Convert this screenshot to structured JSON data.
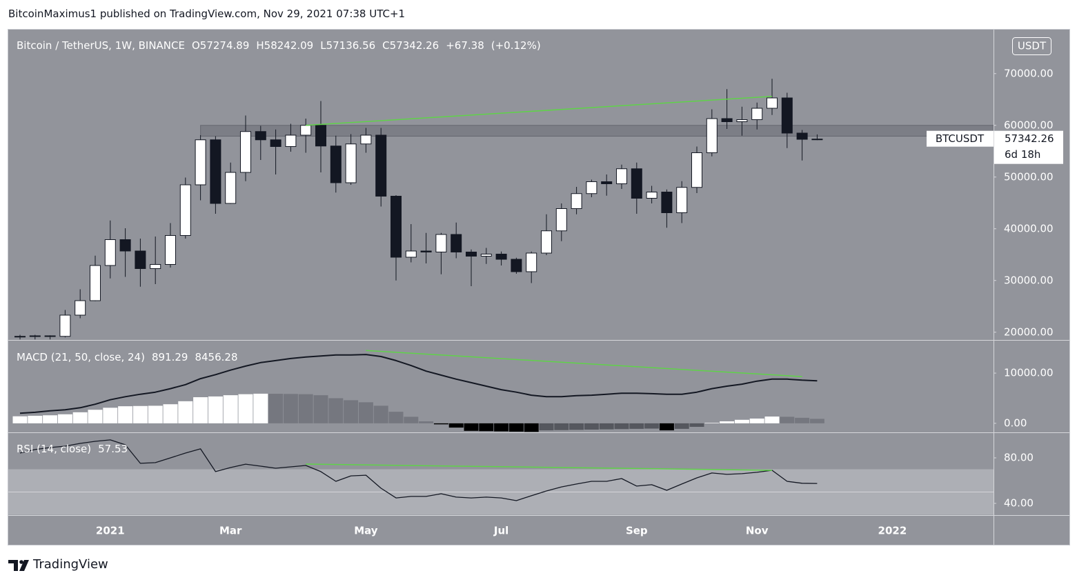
{
  "header": "BitcoinMaximus1 published on TradingView.com, Nov 29, 2021 07:38 UTC+1",
  "footer": "TradingView",
  "chart_data": [
    {
      "type": "candlestick",
      "title": "Bitcoin / TetherUS, 1W, BINANCE",
      "ohlc_letters": [
        "O",
        "H",
        "L",
        "C"
      ],
      "change": "+67.38",
      "change_pct": "(+0.12%)",
      "currency": "USDT",
      "symbol": "BTCUSDT",
      "countdown": "6d 18h",
      "categories": [
        null,
        null,
        null,
        null,
        null,
        null,
        "2021",
        null,
        null,
        null,
        null,
        null,
        null,
        null,
        "Mar",
        null,
        null,
        null,
        null,
        null,
        null,
        null,
        null,
        "May",
        null,
        null,
        null,
        null,
        null,
        null,
        null,
        null,
        "Jul",
        null,
        null,
        null,
        null,
        null,
        null,
        null,
        null,
        "Sep",
        null,
        null,
        null,
        null,
        null,
        null,
        null,
        "Nov",
        null,
        null,
        null,
        null,
        null,
        null,
        null,
        null,
        "2022",
        null,
        null,
        null,
        null,
        null,
        null
      ],
      "ylim": [
        18500,
        78500
      ],
      "yticks": [
        {
          "value": 70000,
          "label": "70000.00"
        },
        {
          "value": 60000,
          "label": "60000.00"
        },
        {
          "value": 50000,
          "label": "50000.00"
        },
        {
          "value": 40000,
          "label": "40000.00"
        },
        {
          "value": 30000,
          "label": "30000.00"
        },
        {
          "value": 20000,
          "label": "20000.00"
        }
      ],
      "grid": false,
      "series": [
        {
          "up_color": "#ffffff",
          "down_color": "#131722",
          "wick_color": "#131722",
          "open": [
            19100,
            19200,
            19300,
            19200,
            23300,
            26100,
            32900,
            37900,
            35700,
            32300,
            33100,
            38700,
            48500,
            57200,
            44900,
            50900,
            58800,
            57200,
            55900,
            58100,
            60000,
            56000,
            48900,
            56400,
            58100,
            46300,
            34500,
            35700,
            35500,
            38900,
            35500,
            34700,
            35100,
            34100,
            31700,
            35300,
            39600,
            43900,
            46800,
            49100,
            48700,
            51600,
            45900,
            47100,
            43100,
            48000,
            54700,
            61300,
            60700,
            61100,
            63300,
            65300,
            58500,
            57274.89,
            null,
            null,
            null,
            null,
            null,
            null,
            null,
            null,
            null,
            null,
            null
          ],
          "high": [
            19500,
            19500,
            19400,
            24300,
            28300,
            34800,
            41600,
            40100,
            38100,
            38500,
            41100,
            49900,
            58100,
            57900,
            52800,
            61900,
            59900,
            59200,
            60300,
            61300,
            64700,
            58000,
            58300,
            59500,
            59500,
            46500,
            40900,
            39200,
            39200,
            41200,
            36000,
            36300,
            35600,
            34400,
            35600,
            42800,
            44900,
            48100,
            49500,
            50500,
            52400,
            52800,
            48300,
            47600,
            49200,
            55900,
            63100,
            67000,
            63600,
            64400,
            69000,
            66300,
            59100,
            58242.09,
            null,
            null,
            null,
            null,
            null,
            null,
            null,
            null,
            null,
            null,
            null
          ],
          "low": [
            18600,
            18600,
            18600,
            19000,
            22700,
            26000,
            30400,
            30700,
            28800,
            29300,
            32500,
            38100,
            45500,
            42900,
            44800,
            49200,
            53300,
            50500,
            54900,
            54700,
            50900,
            47000,
            48500,
            54700,
            44300,
            30000,
            33500,
            33300,
            31200,
            34300,
            28900,
            33200,
            32900,
            31300,
            29500,
            34900,
            37600,
            42800,
            46100,
            46400,
            47700,
            42900,
            44900,
            40200,
            41100,
            46900,
            54000,
            59300,
            58000,
            59200,
            62000,
            55600,
            53200,
            57136.56,
            null,
            null,
            null,
            null,
            null,
            null,
            null,
            null,
            null,
            null,
            null
          ],
          "close": [
            19200,
            19300,
            19200,
            23300,
            26100,
            32900,
            37900,
            35700,
            32300,
            33100,
            38700,
            48500,
            57200,
            44900,
            50900,
            58800,
            57200,
            55900,
            58100,
            60000,
            56000,
            48900,
            56400,
            58100,
            46300,
            34500,
            35700,
            35500,
            38900,
            35500,
            34700,
            35100,
            34100,
            31700,
            35300,
            39600,
            43900,
            46800,
            49100,
            48700,
            51600,
            45900,
            47100,
            43100,
            48000,
            54700,
            61300,
            60700,
            61100,
            63300,
            65300,
            58500,
            57300,
            57342.26,
            null,
            null,
            null,
            null,
            null,
            null,
            null,
            null,
            null,
            null,
            null
          ]
        }
      ],
      "zone": {
        "x_start": 12,
        "y": [
          57900,
          60000
        ],
        "color": "rgba(70,72,80,0.28)"
      },
      "trendline": {
        "x": [
          19,
          50
        ],
        "y": [
          60000,
          65600
        ],
        "color": "#5fd348"
      }
    },
    {
      "type": "macd",
      "title": "MACD (21, 50, close, 24)",
      "ylim": [
        -1800,
        16600
      ],
      "yticks": [
        {
          "value": 10000,
          "label": "10000.00"
        },
        {
          "value": 0,
          "label": "0.00"
        }
      ],
      "histogram": {
        "colors": {
          "up_rising": "#ffffff",
          "up_falling": "#75777f",
          "down_falling": "#000000",
          "down_rising": "#55575e"
        },
        "values": [
          1400,
          1500,
          1600,
          1800,
          2200,
          2700,
          3100,
          3400,
          3450,
          3500,
          3800,
          4400,
          5200,
          5350,
          5600,
          5800,
          5900,
          5880,
          5850,
          5800,
          5600,
          5000,
          4600,
          4200,
          3500,
          2300,
          1300,
          400,
          -200,
          -850,
          -1500,
          -1550,
          -1600,
          -1650,
          -1700,
          -1400,
          -1350,
          -1300,
          -1250,
          -1200,
          -1150,
          -1100,
          -1050,
          -1400,
          -1100,
          -700,
          100,
          400,
          700,
          950,
          1350,
          1300,
          1100,
          891.29,
          null,
          null,
          null,
          null,
          null,
          null,
          null,
          null,
          null,
          null,
          null
        ]
      },
      "macd": {
        "color": "#131722",
        "values": [
          2000,
          2200,
          2500,
          2700,
          3100,
          3800,
          4700,
          5300,
          5800,
          6200,
          6900,
          7700,
          8900,
          9700,
          10600,
          11400,
          12100,
          12500,
          12900,
          13200,
          13400,
          13600,
          13600,
          13700,
          13300,
          12500,
          11500,
          10400,
          9600,
          8800,
          8100,
          7400,
          6700,
          6200,
          5600,
          5300,
          5300,
          5500,
          5600,
          5800,
          6000,
          6000,
          5900,
          5800,
          5800,
          6200,
          6900,
          7400,
          7800,
          8400,
          8800,
          8800,
          8600,
          8456.28,
          null,
          null,
          null,
          null,
          null,
          null,
          null,
          null,
          null,
          null,
          null
        ]
      },
      "trendline": {
        "x": [
          23,
          52
        ],
        "y": [
          14500,
          9300
        ],
        "color": "#5fd348"
      }
    },
    {
      "type": "rsi",
      "title": "RSI (14, close)",
      "ylim": [
        29.7,
        102.4
      ],
      "yticks": [
        {
          "value": 80,
          "label": "80.00"
        },
        {
          "value": 40,
          "label": "40.00"
        }
      ],
      "band": [
        30,
        70
      ],
      "midline": 50,
      "band_color": "#adafb5",
      "color": "#131722",
      "values": [
        84.2,
        87.3,
        89.1,
        90.3,
        92.7,
        94.5,
        95.8,
        91.5,
        75.2,
        75.8,
        80.0,
        84.2,
        87.9,
        67.9,
        71.5,
        74.5,
        72.7,
        70.9,
        72.1,
        73.3,
        67.9,
        59.4,
        64.2,
        64.8,
        53.3,
        44.8,
        46.1,
        46.1,
        48.5,
        45.5,
        44.8,
        45.5,
        44.8,
        42.4,
        46.7,
        50.9,
        54.5,
        57.0,
        59.4,
        59.4,
        61.8,
        55.2,
        56.4,
        51.5,
        57.0,
        62.4,
        66.7,
        65.5,
        66.1,
        67.3,
        69.1,
        59.4,
        57.7,
        57.53,
        null,
        null,
        null,
        null,
        null,
        null,
        null,
        null,
        null,
        null,
        null
      ],
      "trendline": {
        "x": [
          19,
          50
        ],
        "y": [
          74.5,
          69.1
        ],
        "color": "#5fd348"
      }
    }
  ]
}
